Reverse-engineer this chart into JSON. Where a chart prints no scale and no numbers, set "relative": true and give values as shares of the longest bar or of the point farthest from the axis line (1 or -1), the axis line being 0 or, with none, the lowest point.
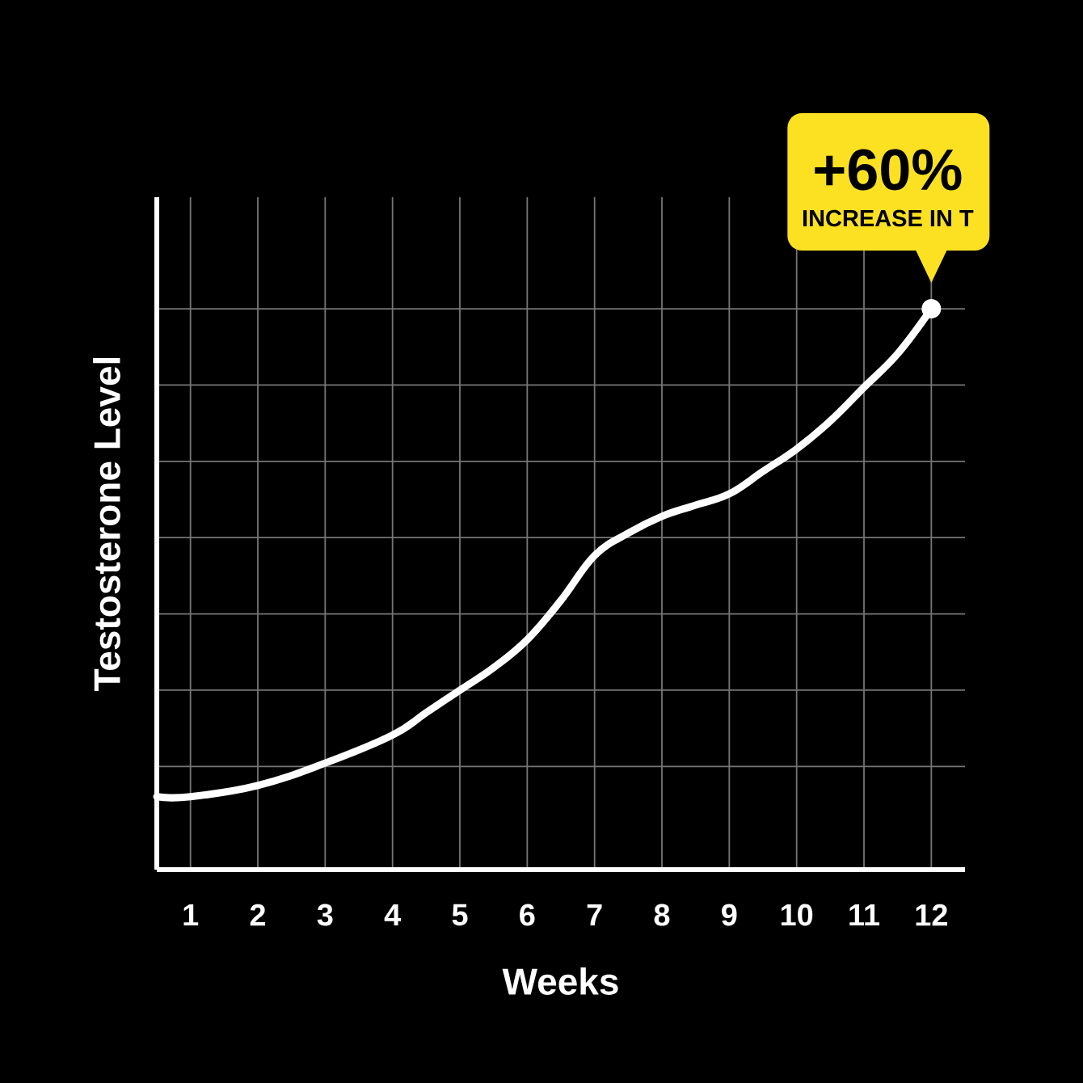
{
  "chart_data": {
    "type": "line",
    "relative": true,
    "xlabel": "Weeks",
    "ylabel": "Testosterone Level",
    "x": [
      0.5,
      1,
      2,
      3,
      4,
      4.5,
      5,
      5.5,
      6,
      6.5,
      7,
      7.5,
      8,
      8.5,
      9,
      9.5,
      10,
      10.5,
      11,
      11.5,
      12
    ],
    "series": [
      {
        "color": "#ffffff",
        "values": [
          0.13,
          0.13,
          0.15,
          0.19,
          0.24,
          0.28,
          0.32,
          0.36,
          0.41,
          0.48,
          0.56,
          0.6,
          0.63,
          0.65,
          0.67,
          0.71,
          0.75,
          0.8,
          0.86,
          0.92,
          1
        ]
      }
    ],
    "xlim": [
      0.5,
      12.5
    ],
    "xticks": [
      1,
      2,
      3,
      4,
      5,
      6,
      7,
      8,
      9,
      10,
      11,
      12
    ],
    "grid": true,
    "annotations": [
      {
        "text": "+60%",
        "x": 12,
        "y": 1
      },
      "INCREASE IN T"
    ]
  }
}
